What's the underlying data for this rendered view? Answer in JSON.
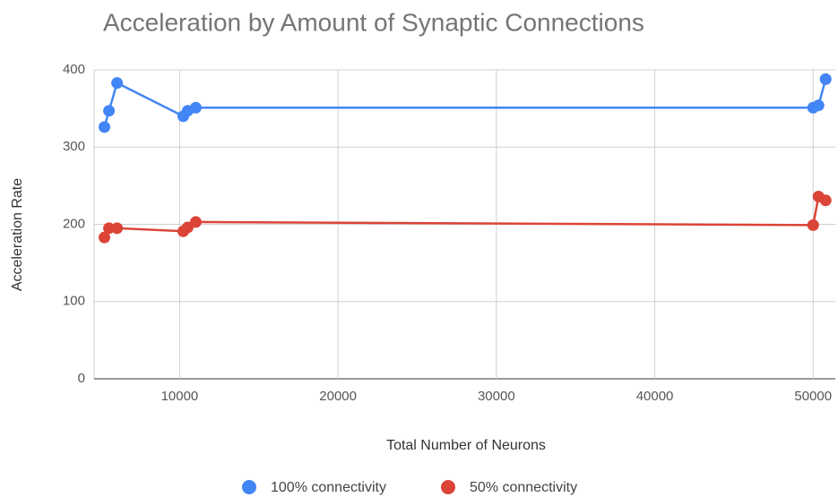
{
  "chart_data": {
    "type": "line",
    "title": "Acceleration by Amount of Synaptic Connections",
    "x_label": "Total Number of Neurons",
    "y_label": "Acceleration Rate",
    "xlim": [
      4600,
      51400
    ],
    "xticks": [
      10000,
      20000,
      30000,
      40000,
      50000
    ],
    "ylim": [
      0,
      400
    ],
    "yticks": [
      0,
      100,
      200,
      300,
      400
    ],
    "grid": true,
    "legend": "bottom",
    "series": [
      {
        "name": "100% connectivity",
        "color": "#4285f4",
        "x": [
          5250,
          5540,
          6050,
          10230,
          10510,
          11020,
          50000,
          50340,
          50790
        ],
        "values": [
          326,
          347,
          383,
          340,
          347,
          351,
          351,
          354,
          388
        ]
      },
      {
        "name": "50% connectivity",
        "color": "#db4437",
        "x": [
          5250,
          5540,
          6050,
          10230,
          10510,
          11020,
          50000,
          50340,
          50790
        ],
        "values": [
          183,
          195,
          195,
          191,
          196,
          203,
          199,
          236,
          231
        ]
      }
    ]
  }
}
